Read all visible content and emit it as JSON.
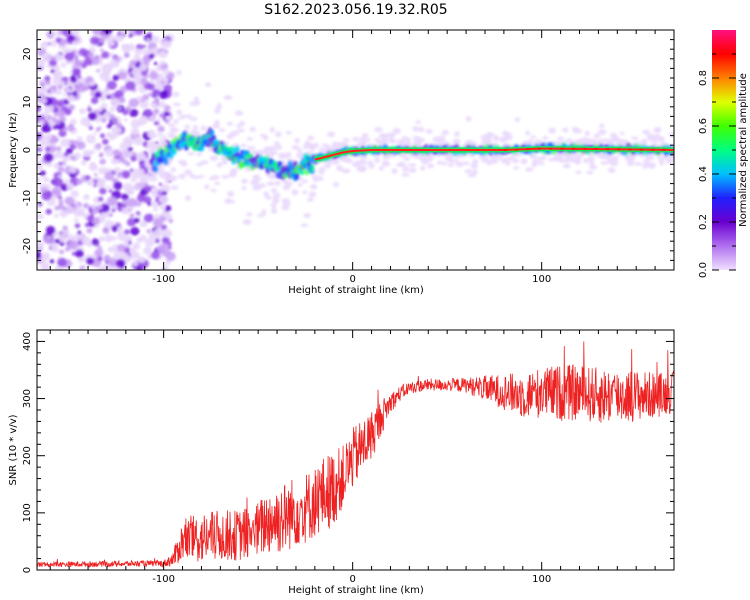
{
  "figure_title": "S162.2023.056.19.32.R05",
  "chart_data": [
    {
      "type": "heatmap",
      "xlabel": "Height of straight line (km)",
      "ylabel": "Frequency (Hz)",
      "xlim": [
        -167,
        170
      ],
      "ylim": [
        -25,
        25
      ],
      "xticks": [
        -100,
        0,
        100
      ],
      "yticks": [
        -20,
        -10,
        0,
        10,
        20
      ],
      "colorbar": {
        "label": "Normalized spectral amplitude",
        "range": [
          0,
          1
        ],
        "ticks": [
          "0.0",
          "0.2",
          "0.4",
          "0.6",
          "0.8"
        ],
        "colormap": [
          "#f0e0ff",
          "#b070f0",
          "#6a00d0",
          "#2020ff",
          "#00c0ff",
          "#00ff80",
          "#40ff00",
          "#e0ff00",
          "#ff8000",
          "#ff0000",
          "#ff1080"
        ]
      },
      "ridge": {
        "x": [
          -105,
          -100,
          -95,
          -90,
          -85,
          -80,
          -75,
          -70,
          -65,
          -60,
          -55,
          -50,
          -45,
          -40,
          -35,
          -30,
          -25,
          -20,
          -15,
          -10,
          -5,
          0,
          10,
          50,
          80,
          100,
          130,
          170
        ],
        "freq": [
          -2.5,
          -1.5,
          0.5,
          2.0,
          1.5,
          1.5,
          2.5,
          0.5,
          -1.0,
          -1.5,
          -2.0,
          -2.5,
          -3.0,
          -4.0,
          -4.5,
          -4.0,
          -3.0,
          -2.0,
          -1.5,
          -1.0,
          -0.5,
          -0.2,
          0.0,
          0.0,
          0.0,
          0.3,
          0.2,
          0.0
        ]
      },
      "noise_region_x": [
        -167,
        -100
      ]
    },
    {
      "type": "line",
      "xlabel": "Height of straight line (km)",
      "ylabel": "SNR (10 * v/v)",
      "xlim": [
        -167,
        170
      ],
      "ylim": [
        0,
        420
      ],
      "xticks": [
        -100,
        0,
        100
      ],
      "yticks": [
        0,
        100,
        200,
        300,
        400
      ],
      "color": "#ee2222",
      "envelope": {
        "x": [
          -167,
          -100,
          -95,
          -90,
          -80,
          -70,
          -60,
          -50,
          -45,
          -40,
          -35,
          -30,
          -25,
          -20,
          -15,
          -10,
          -5,
          0,
          5,
          10,
          15,
          20,
          25,
          30,
          40,
          50,
          60,
          70,
          80,
          90,
          100,
          110,
          120,
          130,
          140,
          150,
          160,
          170
        ],
        "mean": [
          10,
          12,
          20,
          55,
          60,
          65,
          65,
          75,
          90,
          95,
          100,
          110,
          115,
          125,
          140,
          150,
          170,
          200,
          220,
          240,
          270,
          295,
          310,
          320,
          325,
          325,
          325,
          320,
          315,
          310,
          315,
          315,
          315,
          310,
          310,
          310,
          310,
          315
        ],
        "spread": [
          5,
          6,
          15,
          40,
          50,
          50,
          50,
          55,
          65,
          70,
          70,
          70,
          70,
          70,
          75,
          75,
          60,
          60,
          55,
          50,
          35,
          20,
          15,
          12,
          12,
          12,
          15,
          25,
          35,
          45,
          50,
          55,
          55,
          55,
          55,
          50,
          45,
          40
        ]
      }
    }
  ]
}
